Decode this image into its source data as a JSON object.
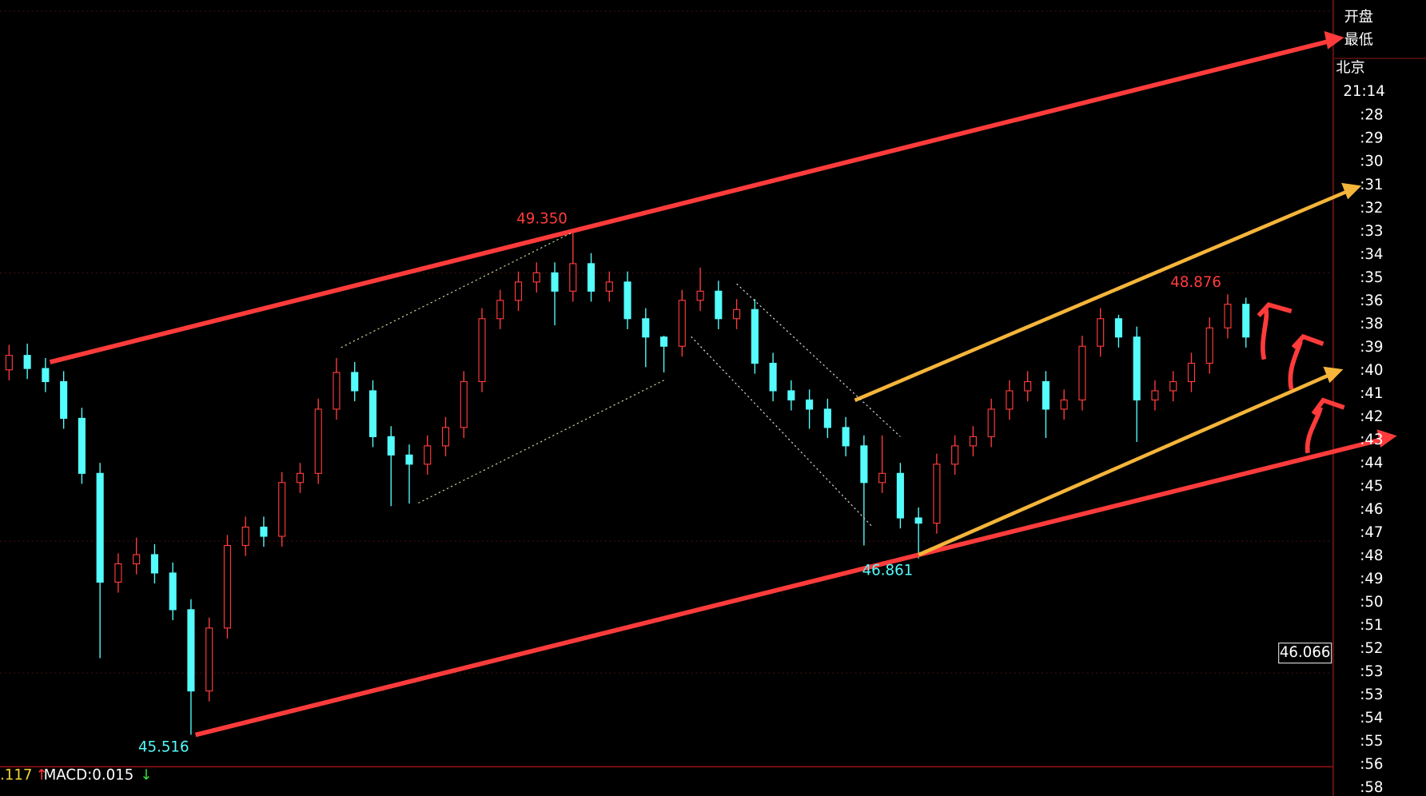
{
  "chart_data": {
    "type": "candlestick",
    "ylim": [
      45.05,
      51.12
    ],
    "open": [
      48.3,
      48.41,
      48.31,
      48.21,
      47.93,
      47.51,
      46.68,
      46.82,
      46.89,
      46.75,
      46.47,
      45.85,
      46.33,
      46.96,
      47.1,
      47.03,
      47.44,
      47.51,
      48.0,
      48.28,
      48.14,
      47.79,
      47.65,
      47.58,
      47.72,
      47.86,
      48.21,
      48.69,
      48.83,
      48.97,
      49.04,
      48.9,
      49.11,
      48.9,
      48.97,
      48.69,
      48.55,
      48.48,
      48.83,
      48.9,
      48.69,
      48.76,
      48.35,
      48.14,
      48.07,
      48.0,
      47.86,
      47.72,
      47.44,
      47.51,
      47.17,
      47.13,
      47.58,
      47.72,
      47.79,
      48.0,
      48.14,
      48.21,
      48.0,
      48.07,
      48.48,
      48.69,
      48.55,
      48.07,
      48.14,
      48.21,
      48.35,
      48.62,
      48.8
    ],
    "high": [
      48.49,
      48.5,
      48.39,
      48.29,
      48.01,
      47.59,
      46.9,
      47.02,
      46.97,
      46.83,
      46.55,
      46.41,
      47.04,
      47.18,
      47.18,
      47.52,
      47.59,
      48.08,
      48.39,
      48.36,
      48.22,
      47.87,
      47.73,
      47.8,
      47.94,
      48.29,
      48.77,
      48.91,
      49.05,
      49.12,
      49.12,
      49.35,
      49.19,
      49.05,
      49.05,
      48.77,
      48.56,
      48.91,
      49.08,
      48.98,
      48.84,
      48.84,
      48.43,
      48.22,
      48.15,
      48.08,
      47.94,
      47.8,
      47.8,
      47.59,
      47.25,
      47.66,
      47.8,
      47.87,
      48.08,
      48.22,
      48.29,
      48.29,
      48.15,
      48.56,
      48.77,
      48.72,
      48.63,
      48.22,
      48.29,
      48.43,
      48.7,
      48.876,
      48.85
    ],
    "low": [
      48.22,
      48.23,
      48.13,
      47.85,
      47.43,
      46.1,
      46.6,
      46.74,
      46.67,
      46.39,
      45.516,
      45.77,
      46.25,
      46.88,
      46.95,
      46.95,
      47.36,
      47.43,
      47.92,
      48.06,
      47.71,
      47.26,
      47.28,
      47.5,
      47.64,
      47.78,
      48.13,
      48.61,
      48.75,
      48.89,
      48.64,
      48.82,
      48.82,
      48.82,
      48.61,
      48.32,
      48.28,
      48.4,
      48.75,
      48.61,
      48.61,
      48.27,
      48.06,
      47.99,
      47.85,
      47.78,
      47.64,
      46.96,
      47.36,
      47.09,
      46.861,
      47.05,
      47.5,
      47.64,
      47.71,
      47.92,
      48.06,
      47.78,
      47.92,
      47.99,
      48.4,
      48.47,
      47.75,
      47.99,
      48.06,
      48.13,
      48.27,
      48.54,
      48.47
    ],
    "close": [
      48.41,
      48.31,
      48.21,
      47.93,
      47.51,
      46.68,
      46.82,
      46.89,
      46.75,
      46.47,
      45.85,
      46.33,
      46.96,
      47.1,
      47.03,
      47.44,
      47.51,
      48.0,
      48.28,
      48.14,
      47.79,
      47.65,
      47.58,
      47.72,
      47.86,
      48.21,
      48.69,
      48.83,
      48.97,
      49.04,
      48.9,
      49.11,
      48.9,
      48.97,
      48.69,
      48.55,
      48.48,
      48.83,
      48.9,
      48.69,
      48.76,
      48.35,
      48.14,
      48.07,
      48.0,
      47.86,
      47.72,
      47.44,
      47.51,
      47.17,
      47.13,
      47.58,
      47.72,
      47.79,
      48.0,
      48.14,
      48.21,
      48.0,
      48.07,
      48.48,
      48.69,
      48.55,
      48.07,
      48.14,
      48.21,
      48.35,
      48.62,
      48.8,
      48.55
    ],
    "up_color": "#ff3b3b",
    "down_color": "#54fcfc",
    "annotations": [
      {
        "text": "49.350",
        "color": "#ff3b3b"
      },
      {
        "text": "48.876",
        "color": "#ff3b3b"
      },
      {
        "text": "46.861",
        "color": "#54fcfc"
      },
      {
        "text": "45.516",
        "color": "#54fcfc"
      }
    ],
    "current_price": "46.066",
    "indicator": {
      "prefix": ".117",
      "up_arrow": "↑",
      "macd": "MACD:0.015",
      "down_arrow": "↓"
    },
    "side_panel": {
      "labels": [
        "开盘",
        "最低"
      ],
      "city": "北京",
      "time": "21:14",
      "minutes": [
        ":28",
        ":29",
        ":30",
        ":31",
        ":32",
        ":33",
        ":34",
        ":35",
        ":36",
        ":38",
        ":39",
        ":40",
        ":41",
        ":42",
        ":43",
        ":44",
        ":45",
        ":46",
        ":47",
        ":48",
        ":49",
        ":50",
        ":51",
        ":52",
        ":53",
        ":53",
        ":54",
        ":55",
        ":56",
        ":58"
      ]
    }
  }
}
